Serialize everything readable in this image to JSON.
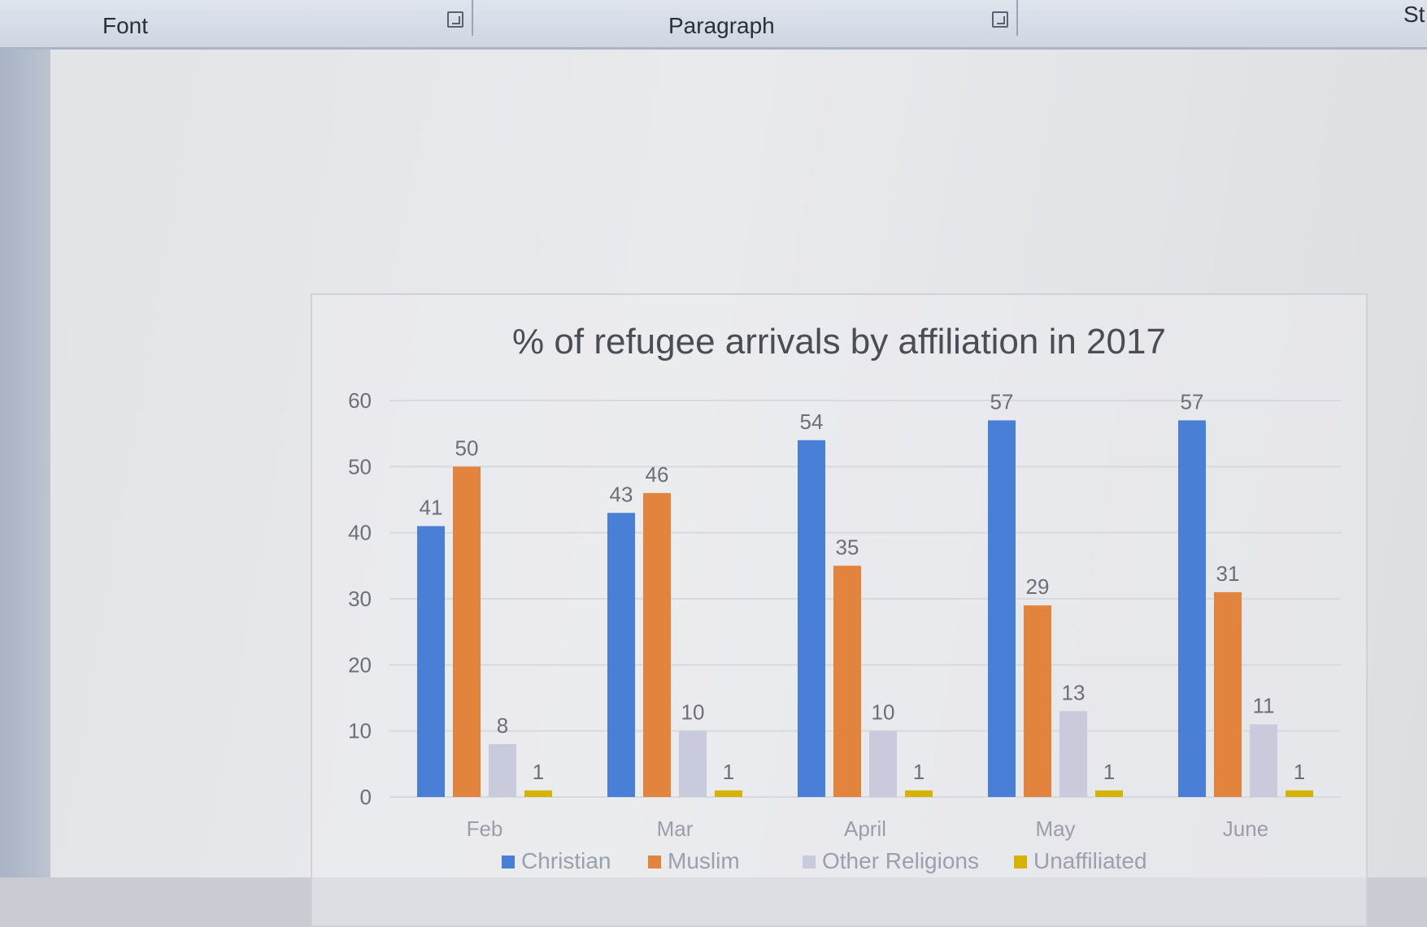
{
  "ribbon": {
    "font_group": "Font",
    "paragraph_group": "Paragraph",
    "styles_group_partial": "St"
  },
  "colors": {
    "christian": "#4a7fd8",
    "muslim": "#e3843e",
    "other": "#c9cbdd",
    "unaffiliated": "#d6b300",
    "gridline": "#d7d9de"
  },
  "chart_data": {
    "type": "bar",
    "title": "% of refugee arrivals by affiliation in 2017",
    "categories": [
      "Feb",
      "Mar",
      "April",
      "May",
      "June"
    ],
    "series": [
      {
        "name": "Christian",
        "values": [
          41,
          43,
          54,
          57,
          57
        ]
      },
      {
        "name": "Muslim",
        "values": [
          50,
          46,
          35,
          29,
          31
        ]
      },
      {
        "name": "Other Religions",
        "values": [
          8,
          10,
          10,
          13,
          11
        ]
      },
      {
        "name": "Unaffiliated",
        "values": [
          1,
          1,
          1,
          1,
          1
        ]
      }
    ],
    "ylim": [
      0,
      60
    ],
    "yticks": [
      0,
      10,
      20,
      30,
      40,
      50,
      60
    ],
    "grid": true,
    "legend": "bottom",
    "data_labels": true
  }
}
